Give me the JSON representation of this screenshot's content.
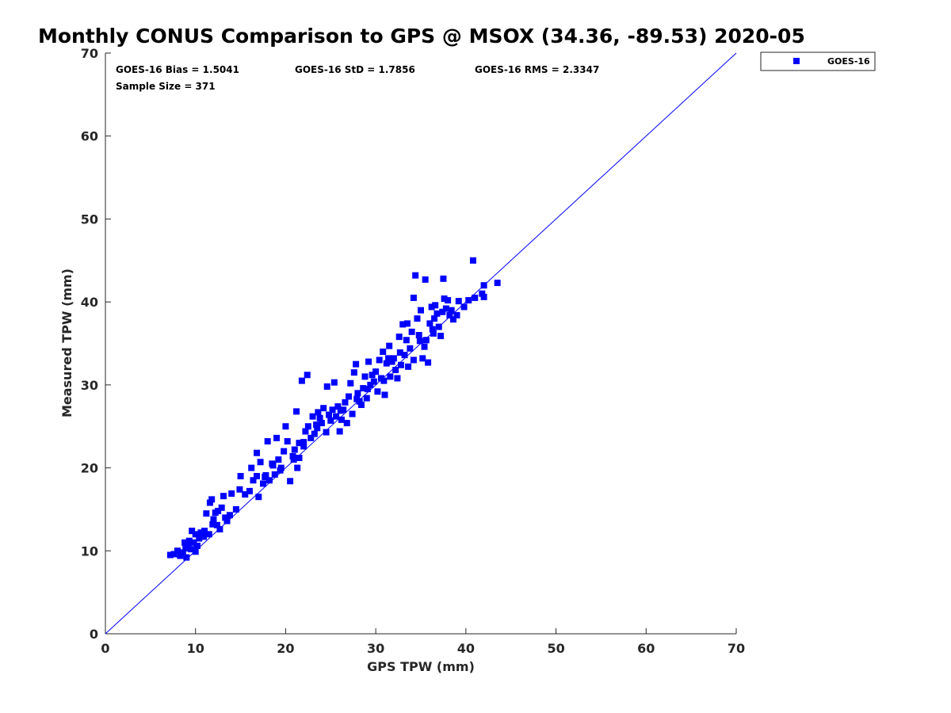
{
  "chart_data": {
    "type": "scatter",
    "title": "Monthly CONUS Comparison to GPS @ MSOX (34.36, -89.53) 2020-05",
    "xlabel": "GPS TPW (mm)",
    "ylabel": "Measured TPW (mm)",
    "xlim": [
      0,
      70
    ],
    "ylim": [
      0,
      70
    ],
    "xticks": [
      "0",
      "10",
      "20",
      "30",
      "40",
      "50",
      "60",
      "70"
    ],
    "yticks": [
      "0",
      "10",
      "20",
      "30",
      "40",
      "50",
      "60",
      "70"
    ],
    "grid": false,
    "legend_position": "outside-top-right",
    "reference_line": {
      "from": [
        0,
        0
      ],
      "to": [
        70,
        70
      ],
      "color": "#0000ff"
    },
    "stats": {
      "bias": "GOES-16 Bias = 1.5041",
      "std": "GOES-16 StD = 1.7856",
      "rms": "GOES-16 RMS = 2.3347",
      "sample": "Sample Size = 371"
    },
    "series": [
      {
        "name": "GOES-16",
        "color": "#0000ff",
        "marker": "square",
        "points": [
          [
            7.2,
            9.5
          ],
          [
            7.6,
            9.6
          ],
          [
            8.0,
            10.0
          ],
          [
            8.3,
            9.4
          ],
          [
            8.6,
            9.8
          ],
          [
            8.8,
            11.0
          ],
          [
            9.0,
            9.2
          ],
          [
            9.2,
            10.5
          ],
          [
            9.5,
            10.2
          ],
          [
            9.6,
            12.4
          ],
          [
            9.8,
            11.0
          ],
          [
            10.0,
            9.9
          ],
          [
            10.2,
            10.6
          ],
          [
            10.4,
            11.5
          ],
          [
            10.0,
            12.0
          ],
          [
            9.3,
            11.2
          ],
          [
            8.9,
            10.3
          ],
          [
            10.6,
            12.2
          ],
          [
            11.0,
            12.4
          ],
          [
            11.2,
            14.5
          ],
          [
            11.5,
            12.0
          ],
          [
            11.6,
            15.8
          ],
          [
            11.8,
            16.2
          ],
          [
            11.9,
            13.2
          ],
          [
            12.0,
            13.8
          ],
          [
            12.2,
            14.6
          ],
          [
            12.5,
            14.8
          ],
          [
            12.7,
            12.6
          ],
          [
            12.9,
            15.2
          ],
          [
            13.1,
            16.6
          ],
          [
            13.3,
            14.0
          ],
          [
            13.5,
            13.6
          ],
          [
            13.8,
            14.3
          ],
          [
            14.0,
            16.9
          ],
          [
            14.5,
            15.0
          ],
          [
            15.0,
            19.0
          ],
          [
            15.5,
            16.8
          ],
          [
            16.0,
            17.2
          ],
          [
            16.2,
            20.0
          ],
          [
            16.4,
            18.5
          ],
          [
            16.8,
            19.0
          ],
          [
            16.8,
            21.8
          ],
          [
            17.0,
            16.5
          ],
          [
            17.2,
            20.7
          ],
          [
            17.5,
            18.1
          ],
          [
            17.8,
            19.1
          ],
          [
            18.0,
            23.2
          ],
          [
            18.2,
            18.5
          ],
          [
            18.5,
            20.5
          ],
          [
            18.8,
            19.2
          ],
          [
            19.0,
            23.6
          ],
          [
            19.2,
            21.0
          ],
          [
            19.5,
            20.0
          ],
          [
            19.8,
            22.0
          ],
          [
            20.0,
            25.0
          ],
          [
            20.2,
            23.2
          ],
          [
            20.5,
            18.4
          ],
          [
            20.8,
            21.4
          ],
          [
            21.0,
            22.2
          ],
          [
            21.2,
            26.8
          ],
          [
            21.3,
            20.0
          ],
          [
            21.5,
            23.0
          ],
          [
            21.8,
            30.5
          ],
          [
            22.0,
            22.6
          ],
          [
            22.2,
            24.4
          ],
          [
            22.4,
            31.2
          ],
          [
            22.5,
            25.0
          ],
          [
            22.8,
            23.6
          ],
          [
            23.0,
            26.2
          ],
          [
            23.2,
            24.1
          ],
          [
            23.4,
            25.2
          ],
          [
            23.6,
            26.7
          ],
          [
            23.8,
            26.0
          ],
          [
            24.0,
            25.4
          ],
          [
            24.2,
            27.2
          ],
          [
            24.5,
            24.3
          ],
          [
            24.6,
            29.8
          ],
          [
            24.8,
            26.4
          ],
          [
            25.0,
            25.7
          ],
          [
            25.2,
            27.0
          ],
          [
            25.4,
            30.3
          ],
          [
            25.6,
            26.2
          ],
          [
            25.8,
            27.4
          ],
          [
            26.0,
            24.4
          ],
          [
            26.2,
            25.8
          ],
          [
            26.4,
            27.0
          ],
          [
            26.6,
            27.9
          ],
          [
            26.8,
            25.4
          ],
          [
            27.0,
            28.6
          ],
          [
            27.2,
            30.2
          ],
          [
            27.4,
            26.5
          ],
          [
            27.6,
            31.5
          ],
          [
            27.8,
            32.5
          ],
          [
            28.0,
            29.0
          ],
          [
            28.2,
            28.0
          ],
          [
            28.4,
            27.6
          ],
          [
            28.6,
            29.6
          ],
          [
            28.8,
            31.0
          ],
          [
            29.0,
            28.4
          ],
          [
            29.2,
            32.8
          ],
          [
            29.4,
            30.0
          ],
          [
            29.6,
            31.2
          ],
          [
            29.8,
            30.4
          ],
          [
            30.0,
            31.6
          ],
          [
            30.2,
            29.2
          ],
          [
            30.4,
            33.0
          ],
          [
            30.6,
            30.8
          ],
          [
            30.8,
            34.0
          ],
          [
            31.0,
            28.8
          ],
          [
            31.2,
            32.6
          ],
          [
            31.4,
            33.2
          ],
          [
            31.5,
            34.7
          ],
          [
            31.6,
            31.0
          ],
          [
            31.8,
            32.8
          ],
          [
            32.0,
            33.2
          ],
          [
            32.2,
            31.8
          ],
          [
            32.4,
            30.8
          ],
          [
            32.6,
            35.8
          ],
          [
            32.8,
            32.4
          ],
          [
            33.0,
            37.3
          ],
          [
            33.2,
            33.6
          ],
          [
            33.4,
            35.4
          ],
          [
            33.5,
            37.4
          ],
          [
            33.6,
            32.2
          ],
          [
            33.8,
            34.4
          ],
          [
            34.0,
            36.4
          ],
          [
            34.2,
            33.0
          ],
          [
            34.2,
            40.5
          ],
          [
            34.4,
            43.2
          ],
          [
            34.6,
            38.0
          ],
          [
            34.8,
            36.0
          ],
          [
            35.0,
            39.0
          ],
          [
            35.2,
            33.2
          ],
          [
            35.4,
            34.6
          ],
          [
            35.5,
            42.7
          ],
          [
            35.6,
            35.4
          ],
          [
            35.8,
            32.7
          ],
          [
            36.0,
            37.4
          ],
          [
            36.2,
            39.4
          ],
          [
            36.4,
            36.2
          ],
          [
            36.5,
            38.0
          ],
          [
            36.6,
            39.6
          ],
          [
            36.8,
            38.6
          ],
          [
            37.0,
            37.0
          ],
          [
            37.2,
            35.9
          ],
          [
            37.4,
            38.8
          ],
          [
            37.5,
            42.8
          ],
          [
            37.6,
            40.4
          ],
          [
            37.8,
            39.2
          ],
          [
            38.0,
            40.2
          ],
          [
            38.2,
            38.4
          ],
          [
            38.4,
            39.0
          ],
          [
            38.6,
            37.9
          ],
          [
            39.0,
            38.4
          ],
          [
            39.2,
            40.1
          ],
          [
            39.8,
            39.4
          ],
          [
            40.3,
            40.2
          ],
          [
            40.8,
            45.0
          ],
          [
            41.0,
            40.5
          ],
          [
            41.8,
            41.0
          ],
          [
            42.0,
            40.6
          ],
          [
            42.0,
            42.0
          ],
          [
            43.5,
            42.3
          ],
          [
            22.0,
            23.1
          ],
          [
            21.5,
            21.2
          ],
          [
            20.9,
            21.0
          ],
          [
            23.5,
            24.8
          ],
          [
            26.1,
            26.9
          ],
          [
            27.9,
            28.3
          ],
          [
            30.9,
            30.5
          ],
          [
            32.7,
            33.9
          ],
          [
            34.9,
            35.3
          ],
          [
            36.3,
            36.7
          ],
          [
            14.9,
            17.4
          ],
          [
            12.4,
            13.1
          ],
          [
            10.9,
            11.7
          ],
          [
            19.4,
            19.7
          ],
          [
            18.6,
            20.3
          ],
          [
            17.7,
            18.9
          ],
          [
            29.1,
            29.5
          ]
        ]
      }
    ]
  }
}
